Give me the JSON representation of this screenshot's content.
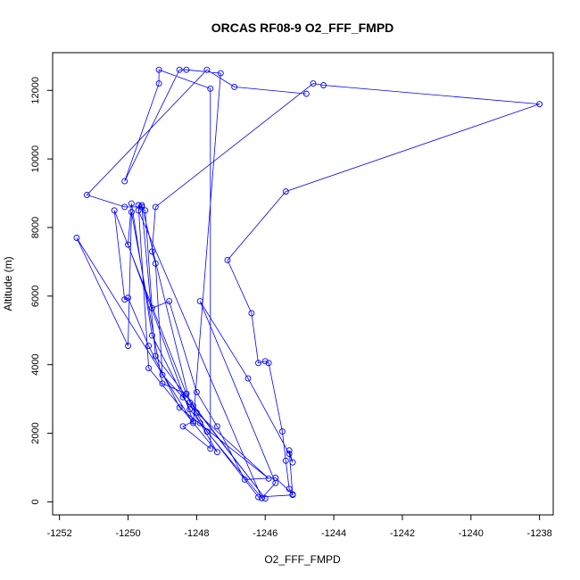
{
  "chart_data": {
    "type": "line",
    "title": "ORCAS RF08-9 O2_FFF_FMPD",
    "xlabel": "O2_FFF_FMPD",
    "ylabel": "Altitude (m)",
    "xlim": [
      -1252.2,
      -1237.6
    ],
    "ylim": [
      -380,
      13100
    ],
    "xticks": [
      -1252,
      -1250,
      -1248,
      -1246,
      -1244,
      -1242,
      -1240,
      -1238
    ],
    "yticks": [
      0,
      2000,
      4000,
      6000,
      8000,
      10000,
      12000
    ],
    "xtick_labels": [
      "-1252",
      "-1250",
      "-1248",
      "-1246",
      "-1244",
      "-1242",
      "-1240",
      "-1238"
    ],
    "ytick_labels": [
      "0",
      "2000",
      "4000",
      "6000",
      "8000",
      "10000",
      "12000"
    ],
    "grid": false,
    "legend": "none",
    "series": [
      {
        "color": "#0000ff",
        "marker": "open-circle",
        "x": [
          -1246.1,
          -1249.7,
          -1249.6,
          -1248.2,
          -1247.9,
          -1247.4,
          -1249.4,
          -1249.7,
          -1249.5,
          -1249.3,
          -1248.8,
          -1248.0,
          -1247.4,
          -1246.6,
          -1245.7,
          -1245.2,
          -1245.3,
          -1245.4,
          -1245.5,
          -1245.9,
          -1246.0,
          -1246.2,
          -1246.4,
          -1247.1,
          -1245.4,
          -1238.0,
          -1244.3,
          -1244.6,
          -1249.2,
          -1249.3,
          -1249.2,
          -1249.0,
          -1248.4,
          -1248.0,
          -1245.9,
          -1248.5,
          -1249.4,
          -1250.0,
          -1250.1,
          -1250.4,
          -1248.3,
          -1247.7,
          -1246.1,
          -1245.7,
          -1247.9,
          -1246.5,
          -1245.3,
          -1245.2,
          -1245.3,
          -1245.2,
          -1246.2,
          -1248.2,
          -1249.3,
          -1249.9,
          -1250.0,
          -1248.1,
          -1248.4,
          -1247.6,
          -1247.6,
          -1249.1,
          -1249.1,
          -1250.1,
          -1248.5,
          -1248.3,
          -1247.3,
          -1248.1,
          -1251.5,
          -1250.0,
          -1249.9,
          -1249.0,
          -1248.3,
          -1248.1,
          -1246.0,
          -1249.2,
          -1249.6,
          -1250.1,
          -1251.2,
          -1247.7,
          -1246.9,
          -1244.8
        ],
        "y": [
          110,
          8500,
          8650,
          2900,
          2300,
          1450,
          3900,
          8650,
          8500,
          5650,
          5850,
          3200,
          2200,
          650,
          700,
          220,
          380,
          1200,
          2050,
          4050,
          4100,
          4050,
          5500,
          7050,
          9050,
          11600,
          12150,
          12200,
          8600,
          7300,
          6950,
          3700,
          3050,
          2600,
          680,
          2750,
          4550,
          5950,
          5900,
          8500,
          3150,
          2050,
          110,
          550,
          5850,
          3600,
          1400,
          1150,
          1500,
          200,
          140,
          2700,
          4850,
          8700,
          7500,
          2350,
          2200,
          1550,
          12050,
          12600,
          12200,
          9350,
          12600,
          12600,
          12500,
          2300,
          7700,
          4550,
          8450,
          3450,
          3150,
          2800,
          100,
          4250,
          8600,
          8600,
          8950,
          12600,
          12100,
          11900
        ]
      }
    ]
  }
}
